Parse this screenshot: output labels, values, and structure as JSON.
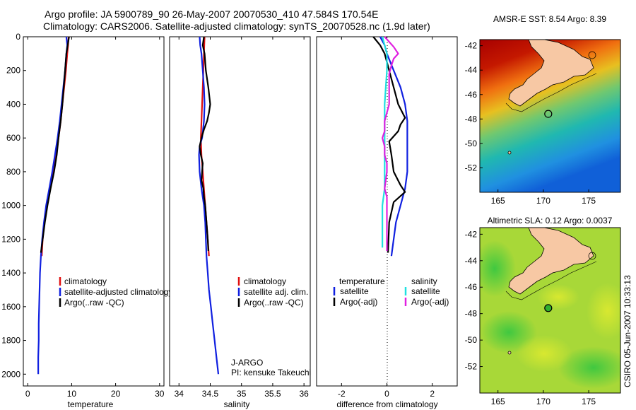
{
  "title": {
    "line1": "Argo profile: JA 5900789_90 26-May-2007 20070530_410 47.584S 170.54E",
    "line2": "Climatology: CARS2006. Satellite-adjusted climatology: synTS_20070528.nc (1.9d later)"
  },
  "colors": {
    "red": "#e01010",
    "blue": "#1020e0",
    "black": "#000000",
    "cyan": "#20e0e0",
    "magenta": "#e020e0"
  },
  "credit": {
    "agency": "J-ARGO",
    "pi": "PI: kensuke Takeuchi"
  },
  "side_label": "CSIRO 05-Jun-2007 10:33:13",
  "chart_data": [
    {
      "id": "temperature",
      "type": "line",
      "xlabel": "temperature",
      "xlim": [
        -1,
        31
      ],
      "ylim": [
        0,
        2070
      ],
      "xticks": [
        0,
        10,
        20,
        30
      ],
      "yticks": [
        0,
        200,
        400,
        600,
        800,
        1000,
        1200,
        1400,
        1600,
        1800,
        2000
      ],
      "legend": [
        "climatology",
        "satellite-adjusted climatology",
        "Argo(..raw -QC)"
      ],
      "series": [
        {
          "name": "climatology",
          "color": "red",
          "points": [
            [
              9.3,
              0
            ],
            [
              9.2,
              50
            ],
            [
              9.0,
              100
            ],
            [
              8.7,
              200
            ],
            [
              8.3,
              300
            ],
            [
              7.9,
              400
            ],
            [
              7.5,
              500
            ],
            [
              7.0,
              600
            ],
            [
              6.5,
              700
            ],
            [
              5.8,
              800
            ],
            [
              5.0,
              900
            ],
            [
              4.3,
              1000
            ],
            [
              3.8,
              1100
            ],
            [
              3.4,
              1200
            ],
            [
              3.2,
              1300
            ]
          ]
        },
        {
          "name": "satellite-adjusted climatology",
          "color": "blue",
          "points": [
            [
              8.8,
              0
            ],
            [
              9.0,
              50
            ],
            [
              8.8,
              100
            ],
            [
              8.5,
              200
            ],
            [
              8.1,
              300
            ],
            [
              7.7,
              400
            ],
            [
              7.3,
              500
            ],
            [
              6.8,
              600
            ],
            [
              6.2,
              700
            ],
            [
              5.6,
              800
            ],
            [
              4.9,
              900
            ],
            [
              4.2,
              1000
            ],
            [
              3.7,
              1100
            ],
            [
              3.3,
              1200
            ],
            [
              3.0,
              1300
            ],
            [
              2.8,
              1400
            ],
            [
              2.7,
              1500
            ],
            [
              2.6,
              1600
            ],
            [
              2.5,
              1700
            ],
            [
              2.5,
              1800
            ],
            [
              2.4,
              1900
            ],
            [
              2.4,
              2000
            ]
          ]
        },
        {
          "name": "Argo(..raw -QC)",
          "color": "black",
          "points": [
            [
              9.4,
              0
            ],
            [
              9.1,
              50
            ],
            [
              8.8,
              100
            ],
            [
              8.5,
              200
            ],
            [
              8.2,
              300
            ],
            [
              7.9,
              400
            ],
            [
              7.5,
              500
            ],
            [
              7.0,
              600
            ],
            [
              6.6,
              700
            ],
            [
              6.0,
              800
            ],
            [
              5.2,
              900
            ],
            [
              4.5,
              1000
            ],
            [
              3.9,
              1100
            ],
            [
              3.4,
              1200
            ],
            [
              3.0,
              1280
            ]
          ]
        }
      ]
    },
    {
      "id": "salinity",
      "type": "line",
      "xlabel": "salinity",
      "xlim": [
        33.85,
        36.1
      ],
      "ylim": [
        0,
        2070
      ],
      "xticks": [
        34,
        34.5,
        35,
        35.5,
        36
      ],
      "legend": [
        "climatology",
        "satellite adj. clim.",
        "Argo(..raw -QC)"
      ],
      "series": [
        {
          "name": "climatology",
          "color": "red",
          "points": [
            [
              34.41,
              0
            ],
            [
              34.4,
              100
            ],
            [
              34.39,
              200
            ],
            [
              34.38,
              300
            ],
            [
              34.37,
              400
            ],
            [
              34.36,
              500
            ],
            [
              34.35,
              600
            ],
            [
              34.36,
              700
            ],
            [
              34.38,
              800
            ],
            [
              34.4,
              900
            ],
            [
              34.42,
              1000
            ],
            [
              34.44,
              1100
            ],
            [
              34.46,
              1200
            ],
            [
              34.48,
              1300
            ]
          ]
        },
        {
          "name": "satellite adj. clim.",
          "color": "blue",
          "points": [
            [
              34.33,
              0
            ],
            [
              34.34,
              50
            ],
            [
              34.36,
              100
            ],
            [
              34.38,
              200
            ],
            [
              34.4,
              300
            ],
            [
              34.41,
              400
            ],
            [
              34.4,
              500
            ],
            [
              34.37,
              600
            ],
            [
              34.33,
              650
            ],
            [
              34.32,
              700
            ],
            [
              34.33,
              800
            ],
            [
              34.36,
              900
            ],
            [
              34.4,
              1000
            ],
            [
              34.42,
              1100
            ],
            [
              34.43,
              1200
            ],
            [
              34.44,
              1300
            ],
            [
              34.46,
              1400
            ],
            [
              34.48,
              1500
            ],
            [
              34.51,
              1600
            ],
            [
              34.54,
              1700
            ],
            [
              34.57,
              1800
            ],
            [
              34.6,
              1900
            ],
            [
              34.63,
              2000
            ]
          ]
        },
        {
          "name": "Argo(..raw -QC)",
          "color": "black",
          "points": [
            [
              34.4,
              0
            ],
            [
              34.38,
              50
            ],
            [
              34.41,
              100
            ],
            [
              34.43,
              200
            ],
            [
              34.47,
              300
            ],
            [
              34.5,
              400
            ],
            [
              34.48,
              450
            ],
            [
              34.45,
              500
            ],
            [
              34.4,
              550
            ],
            [
              34.36,
              600
            ],
            [
              34.33,
              650
            ],
            [
              34.35,
              700
            ],
            [
              34.38,
              750
            ],
            [
              34.37,
              800
            ],
            [
              34.36,
              850
            ],
            [
              34.39,
              900
            ],
            [
              34.4,
              950
            ],
            [
              34.42,
              1000
            ],
            [
              34.44,
              1100
            ],
            [
              34.46,
              1200
            ],
            [
              34.47,
              1270
            ]
          ]
        }
      ]
    },
    {
      "id": "difference",
      "type": "line",
      "xlabel": "difference from climatology",
      "xlim": [
        -3.1,
        3.1
      ],
      "ylim": [
        0,
        2070
      ],
      "xticks": [
        -2,
        0,
        2
      ],
      "legend_headers": [
        "temperature",
        "salinity"
      ],
      "legend": [
        "satellite",
        "Argo(-adj)",
        "satellite",
        "Argo(-adj)"
      ],
      "series": [
        {
          "name": "temperature satellite",
          "color": "blue",
          "points": [
            [
              -0.3,
              0
            ],
            [
              -0.1,
              50
            ],
            [
              0.0,
              100
            ],
            [
              0.3,
              200
            ],
            [
              0.6,
              300
            ],
            [
              0.8,
              400
            ],
            [
              0.9,
              500
            ],
            [
              0.9,
              600
            ],
            [
              0.9,
              700
            ],
            [
              0.9,
              800
            ],
            [
              0.8,
              900
            ],
            [
              0.6,
              1000
            ],
            [
              0.4,
              1100
            ],
            [
              0.3,
              1200
            ],
            [
              0.2,
              1300
            ]
          ]
        },
        {
          "name": "temperature Argo(-adj)",
          "color": "black",
          "points": [
            [
              -0.6,
              0
            ],
            [
              -0.3,
              50
            ],
            [
              -0.1,
              100
            ],
            [
              0.1,
              200
            ],
            [
              0.3,
              300
            ],
            [
              0.5,
              400
            ],
            [
              0.8,
              480
            ],
            [
              0.6,
              520
            ],
            [
              0.5,
              560
            ],
            [
              0.1,
              620
            ],
            [
              0.2,
              700
            ],
            [
              0.3,
              800
            ],
            [
              0.6,
              880
            ],
            [
              0.8,
              920
            ],
            [
              0.3,
              980
            ],
            [
              0.1,
              1100
            ],
            [
              0.05,
              1280
            ]
          ]
        },
        {
          "name": "salinity satellite",
          "color": "cyan",
          "points": [
            [
              -0.2,
              0
            ],
            [
              -0.1,
              50
            ],
            [
              0.0,
              100
            ],
            [
              0.0,
              200
            ],
            [
              -0.1,
              400
            ],
            [
              -0.1,
              500
            ],
            [
              -0.1,
              600
            ],
            [
              -0.1,
              700
            ],
            [
              -0.1,
              800
            ],
            [
              -0.1,
              900
            ],
            [
              -0.2,
              1000
            ],
            [
              -0.2,
              1100
            ],
            [
              -0.2,
              1200
            ],
            [
              -0.2,
              1250
            ]
          ]
        },
        {
          "name": "salinity Argo(-adj)",
          "color": "magenta",
          "points": [
            [
              -0.1,
              0
            ],
            [
              0.3,
              60
            ],
            [
              0.5,
              100
            ],
            [
              0.3,
              130
            ],
            [
              0.2,
              170
            ],
            [
              0.1,
              220
            ],
            [
              0.1,
              300
            ],
            [
              0.1,
              400
            ],
            [
              0.0,
              450
            ],
            [
              -0.1,
              500
            ],
            [
              -0.1,
              560
            ],
            [
              -0.2,
              600
            ],
            [
              -0.1,
              650
            ],
            [
              -0.1,
              700
            ],
            [
              0.0,
              750
            ],
            [
              0.0,
              800
            ],
            [
              -0.1,
              900
            ],
            [
              0.0,
              950
            ],
            [
              0.0,
              1000
            ],
            [
              0.0,
              1100
            ],
            [
              0.0,
              1200
            ],
            [
              0.0,
              1270
            ]
          ]
        }
      ]
    },
    {
      "id": "sst-map",
      "type": "heatmap",
      "title": "AMSR-E SST: 8.54 Argo: 8.39",
      "xticks": [
        165,
        170,
        175
      ],
      "yticks": [
        -42,
        -44,
        -46,
        -48,
        -50,
        -52
      ],
      "xlim": [
        163,
        178.5
      ],
      "ylim": [
        -54,
        -41.5
      ],
      "argo_point": [
        170.54,
        -47.58
      ]
    },
    {
      "id": "sla-map",
      "type": "heatmap",
      "title": "Altimetric SLA: 0.12 Argo: 0.0037",
      "xticks": [
        165,
        170,
        175
      ],
      "yticks": [
        -42,
        -44,
        -46,
        -48,
        -50,
        -52
      ],
      "xlim": [
        163,
        178.5
      ],
      "ylim": [
        -54,
        -41.5
      ],
      "argo_point": [
        170.54,
        -47.58
      ]
    }
  ]
}
